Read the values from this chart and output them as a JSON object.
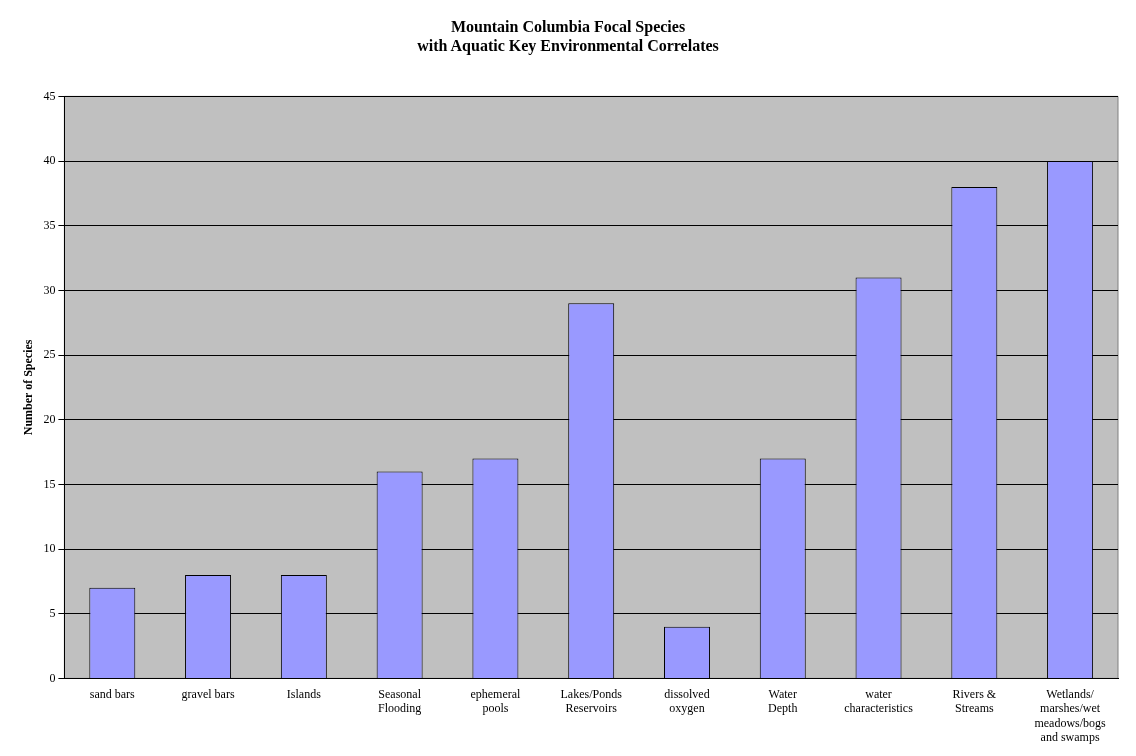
{
  "chart_data": {
    "type": "bar",
    "title": "Mountain Columbia Focal Species\nwith Aquatic Key Environmental Correlates",
    "ylabel": "Number of Species",
    "categories": [
      "sand bars",
      "gravel bars",
      "Islands",
      "Seasonal\nFlooding",
      "ephemeral\npools",
      "Lakes/Ponds\nReservoirs",
      "dissolved\noxygen",
      "Water\nDepth",
      "water\ncharacteristics",
      "Rivers &\nStreams",
      "Wetlands/\nmarshes/wet\nmeadows/bogs\nand swamps"
    ],
    "values": [
      7,
      8,
      8,
      16,
      17,
      29,
      4,
      17,
      31,
      38,
      40
    ],
    "color": "#9999ff",
    "ylim": [
      0,
      45
    ],
    "yticks": [
      0,
      5,
      10,
      15,
      20,
      25,
      30,
      35,
      40,
      45
    ],
    "grid": "y",
    "legend": false
  }
}
